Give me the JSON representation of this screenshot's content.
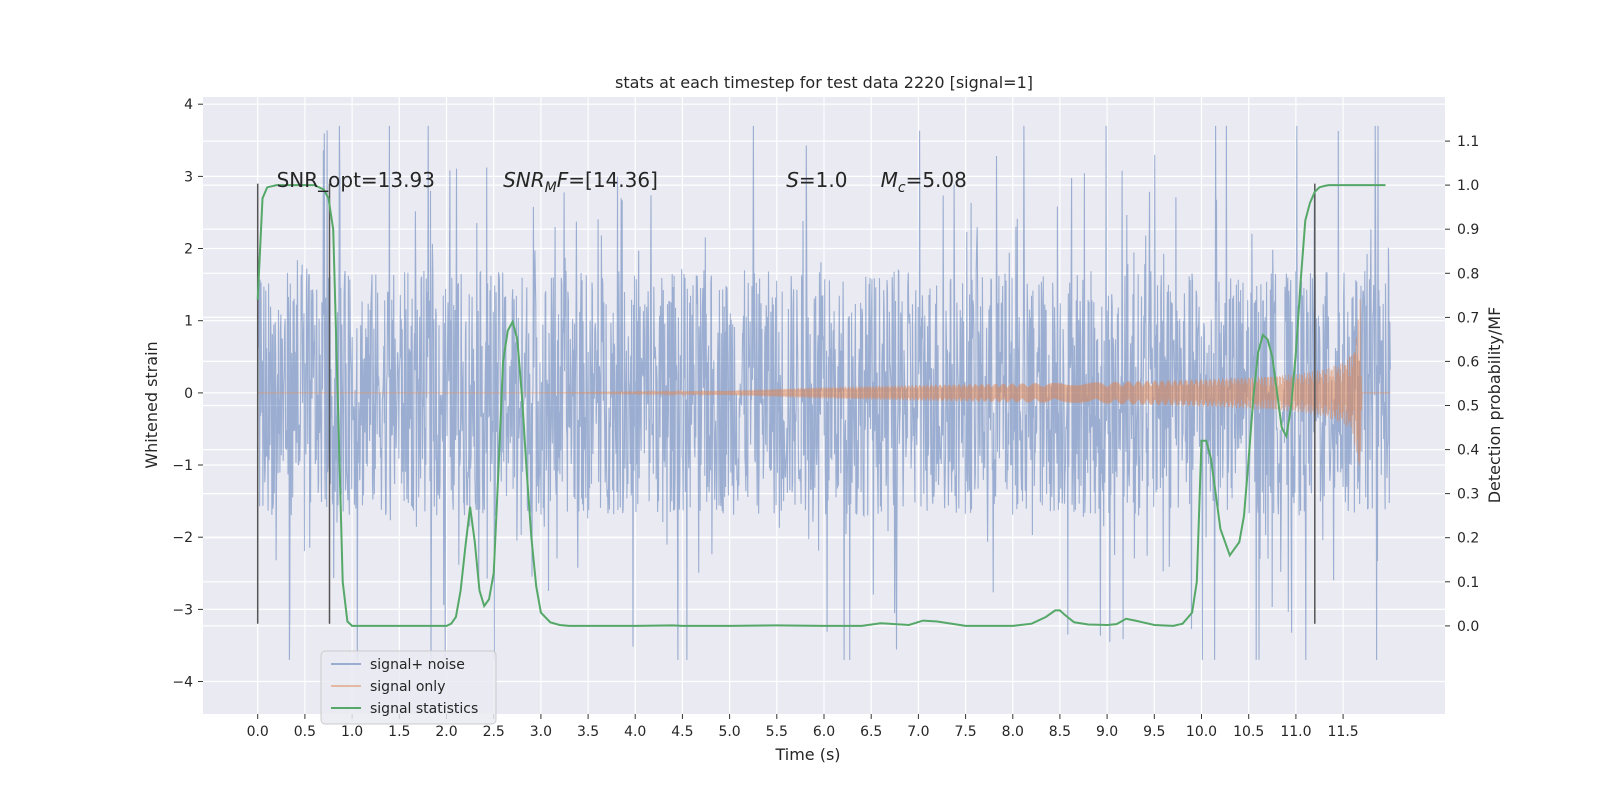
{
  "chart_data": {
    "type": "line",
    "title": "stats at each timestep for test data 2220 [signal=1]",
    "xlabel": "Time (s)",
    "ylabel_left": "Whitened strain",
    "ylabel_right": "Detection probability/MF",
    "xlim": [
      -0.58,
      12.58
    ],
    "ylim_left": [
      -4.45,
      4.1
    ],
    "ylim_right": [
      -0.2,
      1.2
    ],
    "x_ticks": [
      0.0,
      0.5,
      1.0,
      1.5,
      2.0,
      2.5,
      3.0,
      3.5,
      4.0,
      4.5,
      5.0,
      5.5,
      6.0,
      6.5,
      7.0,
      7.5,
      8.0,
      8.5,
      9.0,
      9.5,
      10.0,
      10.5,
      11.0,
      11.5
    ],
    "x_tick_labels": [
      "0.0",
      "0.5",
      "1.0",
      "1.5",
      "2.0",
      "2.5",
      "3.0",
      "3.5",
      "4.0",
      "4.5",
      "5.0",
      "5.5",
      "6.0",
      "6.5",
      "7.0",
      "7.5",
      "8.0",
      "8.5",
      "9.0",
      "9.5",
      "10.0",
      "10.5",
      "11.0",
      "11.5"
    ],
    "y_left_ticks": [
      -4,
      -3,
      -2,
      -1,
      0,
      1,
      2,
      3,
      4
    ],
    "y_left_tick_labels": [
      "−4",
      "−3",
      "−2",
      "−1",
      "0",
      "1",
      "2",
      "3",
      "4"
    ],
    "y_right_ticks": [
      0.0,
      0.1,
      0.2,
      0.3,
      0.4,
      0.5,
      0.6,
      0.7,
      0.8,
      0.9,
      1.0,
      1.1
    ],
    "y_right_tick_labels": [
      "0.0",
      "0.1",
      "0.2",
      "0.3",
      "0.4",
      "0.5",
      "0.6",
      "0.7",
      "0.8",
      "0.9",
      "1.0",
      "1.1"
    ],
    "grid": true,
    "legend_position": "lower-left",
    "series": [
      {
        "name": "signal+ noise",
        "color": "#4c72b0",
        "axis": "left",
        "duration": 12.0,
        "envelope": [
          [
            0.0,
            1.7
          ],
          [
            12.0,
            1.7
          ]
        ],
        "peak_scale": 2.3
      },
      {
        "name": "signal only",
        "color": "#dd8452",
        "axis": "left",
        "envelope": [
          [
            0.0,
            0.0
          ],
          [
            3.0,
            0.0
          ],
          [
            5.0,
            0.03
          ],
          [
            6.0,
            0.08
          ],
          [
            7.0,
            0.11
          ],
          [
            8.0,
            0.13
          ],
          [
            9.0,
            0.15
          ],
          [
            10.0,
            0.19
          ],
          [
            10.5,
            0.22
          ],
          [
            11.0,
            0.26
          ],
          [
            11.3,
            0.33
          ],
          [
            11.5,
            0.42
          ],
          [
            11.6,
            0.55
          ],
          [
            11.65,
            0.9
          ],
          [
            11.68,
            1.3
          ],
          [
            11.7,
            0.0
          ],
          [
            12.0,
            0.0
          ]
        ]
      },
      {
        "name": "signal statistics",
        "color": "#55a868",
        "axis": "right",
        "x": [
          0.0,
          0.05,
          0.1,
          0.2,
          0.3,
          0.4,
          0.5,
          0.6,
          0.7,
          0.75,
          0.8,
          0.85,
          0.9,
          0.95,
          1.0,
          1.1,
          1.5,
          2.0,
          2.05,
          2.1,
          2.15,
          2.2,
          2.25,
          2.3,
          2.35,
          2.4,
          2.45,
          2.5,
          2.55,
          2.6,
          2.65,
          2.7,
          2.75,
          2.8,
          2.85,
          2.9,
          2.95,
          3.0,
          3.1,
          3.2,
          3.3,
          3.5,
          4.0,
          4.4,
          4.5,
          5.0,
          5.5,
          6.0,
          6.4,
          6.6,
          6.9,
          7.05,
          7.2,
          7.5,
          7.8,
          8.0,
          8.2,
          8.35,
          8.45,
          8.5,
          8.55,
          8.65,
          8.8,
          9.0,
          9.1,
          9.2,
          9.3,
          9.5,
          9.7,
          9.8,
          9.9,
          9.95,
          10.0,
          10.05,
          10.1,
          10.15,
          10.2,
          10.3,
          10.4,
          10.45,
          10.5,
          10.55,
          10.6,
          10.65,
          10.7,
          10.75,
          10.8,
          10.85,
          10.9,
          10.95,
          11.0,
          11.05,
          11.1,
          11.15,
          11.2,
          11.25,
          11.3,
          11.35,
          11.4,
          11.5,
          11.6,
          11.8,
          11.95
        ],
        "y": [
          0.74,
          0.97,
          0.995,
          1.0,
          1.0,
          1.0,
          1.0,
          1.0,
          0.99,
          0.97,
          0.9,
          0.5,
          0.1,
          0.01,
          0.0,
          0.0,
          0.0,
          0.0,
          0.005,
          0.02,
          0.08,
          0.18,
          0.27,
          0.19,
          0.08,
          0.045,
          0.06,
          0.12,
          0.35,
          0.6,
          0.67,
          0.69,
          0.65,
          0.52,
          0.35,
          0.2,
          0.09,
          0.03,
          0.008,
          0.002,
          0.0,
          0.0,
          0.0,
          0.001,
          0.0,
          0.0,
          0.001,
          0.0,
          0.0,
          0.006,
          0.002,
          0.012,
          0.01,
          0.0,
          0.0,
          0.0,
          0.005,
          0.02,
          0.035,
          0.035,
          0.025,
          0.008,
          0.003,
          0.002,
          0.004,
          0.016,
          0.012,
          0.002,
          0.0,
          0.005,
          0.03,
          0.1,
          0.42,
          0.42,
          0.38,
          0.3,
          0.22,
          0.16,
          0.19,
          0.25,
          0.38,
          0.52,
          0.62,
          0.66,
          0.65,
          0.61,
          0.53,
          0.45,
          0.43,
          0.5,
          0.62,
          0.78,
          0.92,
          0.96,
          0.985,
          0.995,
          0.998,
          1.0,
          1.0,
          1.0,
          1.0,
          1.0,
          1.0
        ]
      }
    ],
    "vlines": [
      0.0,
      0.76,
      11.2
    ],
    "vline_range": [
      -3.2,
      2.9
    ],
    "annotations": [
      {
        "id": "snr-opt",
        "segments": [
          {
            "t": "SNR_opt=13.93",
            "style": "normal"
          }
        ],
        "x": 0.2,
        "y": 2.85
      },
      {
        "id": "snr-mf",
        "segments": [
          {
            "t": "SNR",
            "style": "italic"
          },
          {
            "t": "M",
            "style": "italic-sub"
          },
          {
            "t": "F",
            "style": "italic"
          },
          {
            "t": "=[14.36]",
            "style": "normal"
          }
        ],
        "x": 2.6,
        "y": 2.85
      },
      {
        "id": "spin",
        "segments": [
          {
            "t": "S",
            "style": "italic"
          },
          {
            "t": "=1.0",
            "style": "normal"
          }
        ],
        "x": 5.6,
        "y": 2.85
      },
      {
        "id": "chirp-mass",
        "segments": [
          {
            "t": "M",
            "style": "italic"
          },
          {
            "t": "c",
            "style": "italic-sub"
          },
          {
            "t": "=5.08",
            "style": "normal"
          }
        ],
        "x": 6.6,
        "y": 2.85
      }
    ],
    "legend": [
      {
        "label": "signal+ noise",
        "color": "#4c72b0",
        "alpha": 0.5
      },
      {
        "label": "signal only",
        "color": "#dd8452",
        "alpha": 0.5
      },
      {
        "label": "signal statistics",
        "color": "#55a868",
        "alpha": 1
      }
    ],
    "colors": {
      "plot_bg": "#eaeaf2",
      "grid": "#ffffff",
      "vline": "#555555"
    }
  }
}
